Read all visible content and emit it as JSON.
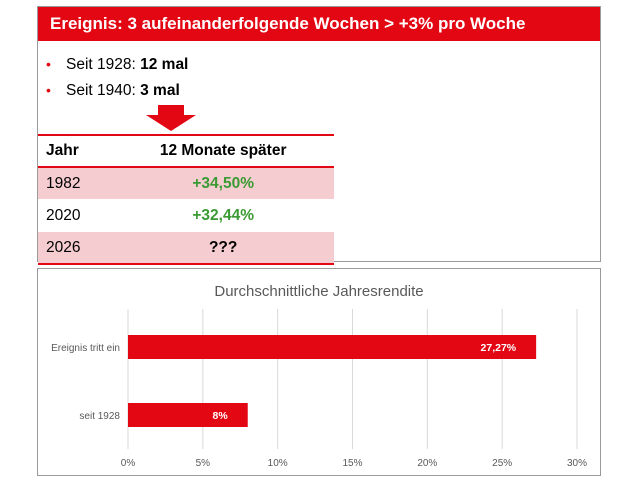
{
  "banner": {
    "title": "Ereignis: 3 aufeinanderfolgende Wochen > +3% pro Woche"
  },
  "bullets": [
    {
      "prefix": "Seit 1928: ",
      "value": "12 mal"
    },
    {
      "prefix": "Seit 1940: ",
      "value": "3 mal"
    }
  ],
  "table": {
    "headers": [
      "Jahr",
      "12 Monate später"
    ],
    "rows": [
      {
        "year": "1982",
        "value": "+34,50%"
      },
      {
        "year": "2020",
        "value": "+32,44%"
      },
      {
        "year": "2026",
        "value": "???"
      }
    ]
  },
  "colors": {
    "accent": "#e30613",
    "positive": "#3a9a33",
    "shade": "#f5cdd0"
  },
  "chart_data": {
    "type": "bar",
    "orientation": "horizontal",
    "title": "Durchschnittliche Jahresrendite",
    "categories": [
      "Ereignis tritt ein",
      "seit 1928"
    ],
    "values": [
      27.27,
      8
    ],
    "data_labels": [
      "27,27%",
      "8%"
    ],
    "xlim": [
      0,
      30
    ],
    "xticks": [
      0,
      5,
      10,
      15,
      20,
      25,
      30
    ],
    "xtick_labels": [
      "0%",
      "5%",
      "10%",
      "15%",
      "20%",
      "25%",
      "30%"
    ],
    "grid": true,
    "bar_color": "#e30613"
  }
}
